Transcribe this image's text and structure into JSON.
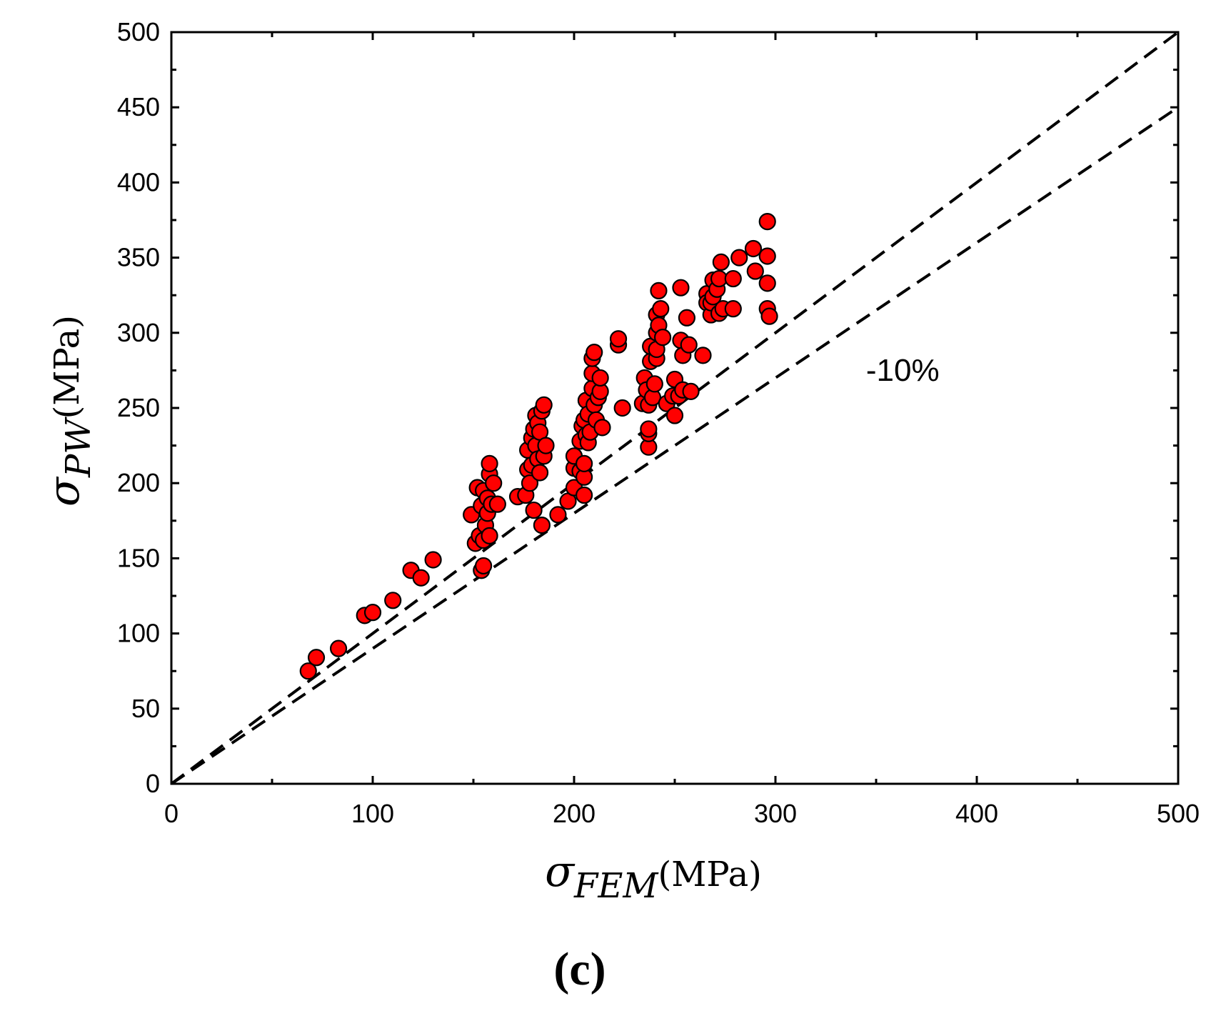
{
  "chart_data": {
    "type": "scatter",
    "panel_label": "(c)",
    "xlabel": {
      "symbol": "σ",
      "subscript": "FEM",
      "unit": "(MPa)"
    },
    "ylabel": {
      "symbol": "σ",
      "subscript": "PW",
      "unit": "(MPa)"
    },
    "xlim": [
      0,
      500
    ],
    "ylim": [
      0,
      500
    ],
    "x_ticks": [
      "0",
      "100",
      "200",
      "300",
      "400",
      "500"
    ],
    "y_ticks": [
      "0",
      "50",
      "100",
      "150",
      "200",
      "250",
      "300",
      "350",
      "400",
      "450",
      "500"
    ],
    "annotation": {
      "text": "-10%",
      "x": 345,
      "y": 268
    },
    "reference_lines": [
      {
        "name": "y = x",
        "style": "dashed",
        "color": "#000000",
        "slope": 1.0
      },
      {
        "name": "-10%",
        "style": "dashed",
        "color": "#000000",
        "slope": 0.9
      }
    ],
    "marker": {
      "fill": "#ff0000",
      "edge": "#000000"
    },
    "series": [
      {
        "name": "data",
        "points": [
          [
            68,
            75
          ],
          [
            72,
            84
          ],
          [
            83,
            90
          ],
          [
            96,
            112
          ],
          [
            100,
            114
          ],
          [
            110,
            122
          ],
          [
            119,
            142
          ],
          [
            124,
            137
          ],
          [
            130,
            149
          ],
          [
            149,
            179
          ],
          [
            151,
            160
          ],
          [
            152,
            197
          ],
          [
            153,
            165
          ],
          [
            154,
            142
          ],
          [
            154,
            185
          ],
          [
            155,
            145
          ],
          [
            155,
            162
          ],
          [
            155,
            195
          ],
          [
            156,
            172
          ],
          [
            157,
            180
          ],
          [
            157,
            190
          ],
          [
            158,
            206
          ],
          [
            158,
            213
          ],
          [
            158,
            165
          ],
          [
            159,
            186
          ],
          [
            160,
            200
          ],
          [
            162,
            186
          ],
          [
            172,
            191
          ],
          [
            176,
            192
          ],
          [
            177,
            209
          ],
          [
            177,
            222
          ],
          [
            178,
            200
          ],
          [
            179,
            212
          ],
          [
            179,
            230
          ],
          [
            180,
            182
          ],
          [
            180,
            236
          ],
          [
            181,
            225
          ],
          [
            181,
            245
          ],
          [
            182,
            240
          ],
          [
            182,
            216
          ],
          [
            183,
            207
          ],
          [
            183,
            234
          ],
          [
            184,
            172
          ],
          [
            184,
            248
          ],
          [
            185,
            218
          ],
          [
            185,
            252
          ],
          [
            186,
            225
          ],
          [
            192,
            179
          ],
          [
            197,
            188
          ],
          [
            200,
            197
          ],
          [
            200,
            210
          ],
          [
            200,
            218
          ],
          [
            203,
            208
          ],
          [
            203,
            228
          ],
          [
            204,
            238
          ],
          [
            205,
            192
          ],
          [
            205,
            204
          ],
          [
            205,
            213
          ],
          [
            205,
            242
          ],
          [
            206,
            232
          ],
          [
            206,
            255
          ],
          [
            207,
            227
          ],
          [
            207,
            246
          ],
          [
            208,
            234
          ],
          [
            209,
            263
          ],
          [
            209,
            273
          ],
          [
            209,
            283
          ],
          [
            210,
            287
          ],
          [
            210,
            252
          ],
          [
            211,
            242
          ],
          [
            212,
            257
          ],
          [
            213,
            261
          ],
          [
            213,
            270
          ],
          [
            214,
            237
          ],
          [
            222,
            292
          ],
          [
            222,
            296
          ],
          [
            224,
            250
          ],
          [
            234,
            253
          ],
          [
            235,
            270
          ],
          [
            236,
            262
          ],
          [
            237,
            224
          ],
          [
            237,
            233
          ],
          [
            237,
            236
          ],
          [
            237,
            252
          ],
          [
            238,
            281
          ],
          [
            238,
            291
          ],
          [
            239,
            257
          ],
          [
            240,
            266
          ],
          [
            241,
            283
          ],
          [
            241,
            289
          ],
          [
            241,
            300
          ],
          [
            241,
            312
          ],
          [
            242,
            328
          ],
          [
            242,
            305
          ],
          [
            243,
            316
          ],
          [
            244,
            297
          ],
          [
            246,
            253
          ],
          [
            249,
            258
          ],
          [
            250,
            245
          ],
          [
            250,
            269
          ],
          [
            252,
            258
          ],
          [
            253,
            295
          ],
          [
            253,
            330
          ],
          [
            254,
            285
          ],
          [
            254,
            262
          ],
          [
            256,
            310
          ],
          [
            257,
            292
          ],
          [
            258,
            261
          ],
          [
            264,
            285
          ],
          [
            266,
            326
          ],
          [
            266,
            320
          ],
          [
            268,
            312
          ],
          [
            268,
            320
          ],
          [
            269,
            324
          ],
          [
            269,
            335
          ],
          [
            271,
            329
          ],
          [
            272,
            313
          ],
          [
            272,
            336
          ],
          [
            273,
            347
          ],
          [
            274,
            316
          ],
          [
            279,
            316
          ],
          [
            279,
            336
          ],
          [
            282,
            350
          ],
          [
            289,
            356
          ],
          [
            290,
            341
          ],
          [
            296,
            374
          ],
          [
            296,
            351
          ],
          [
            296,
            333
          ],
          [
            296,
            316
          ],
          [
            297,
            311
          ]
        ]
      }
    ]
  }
}
